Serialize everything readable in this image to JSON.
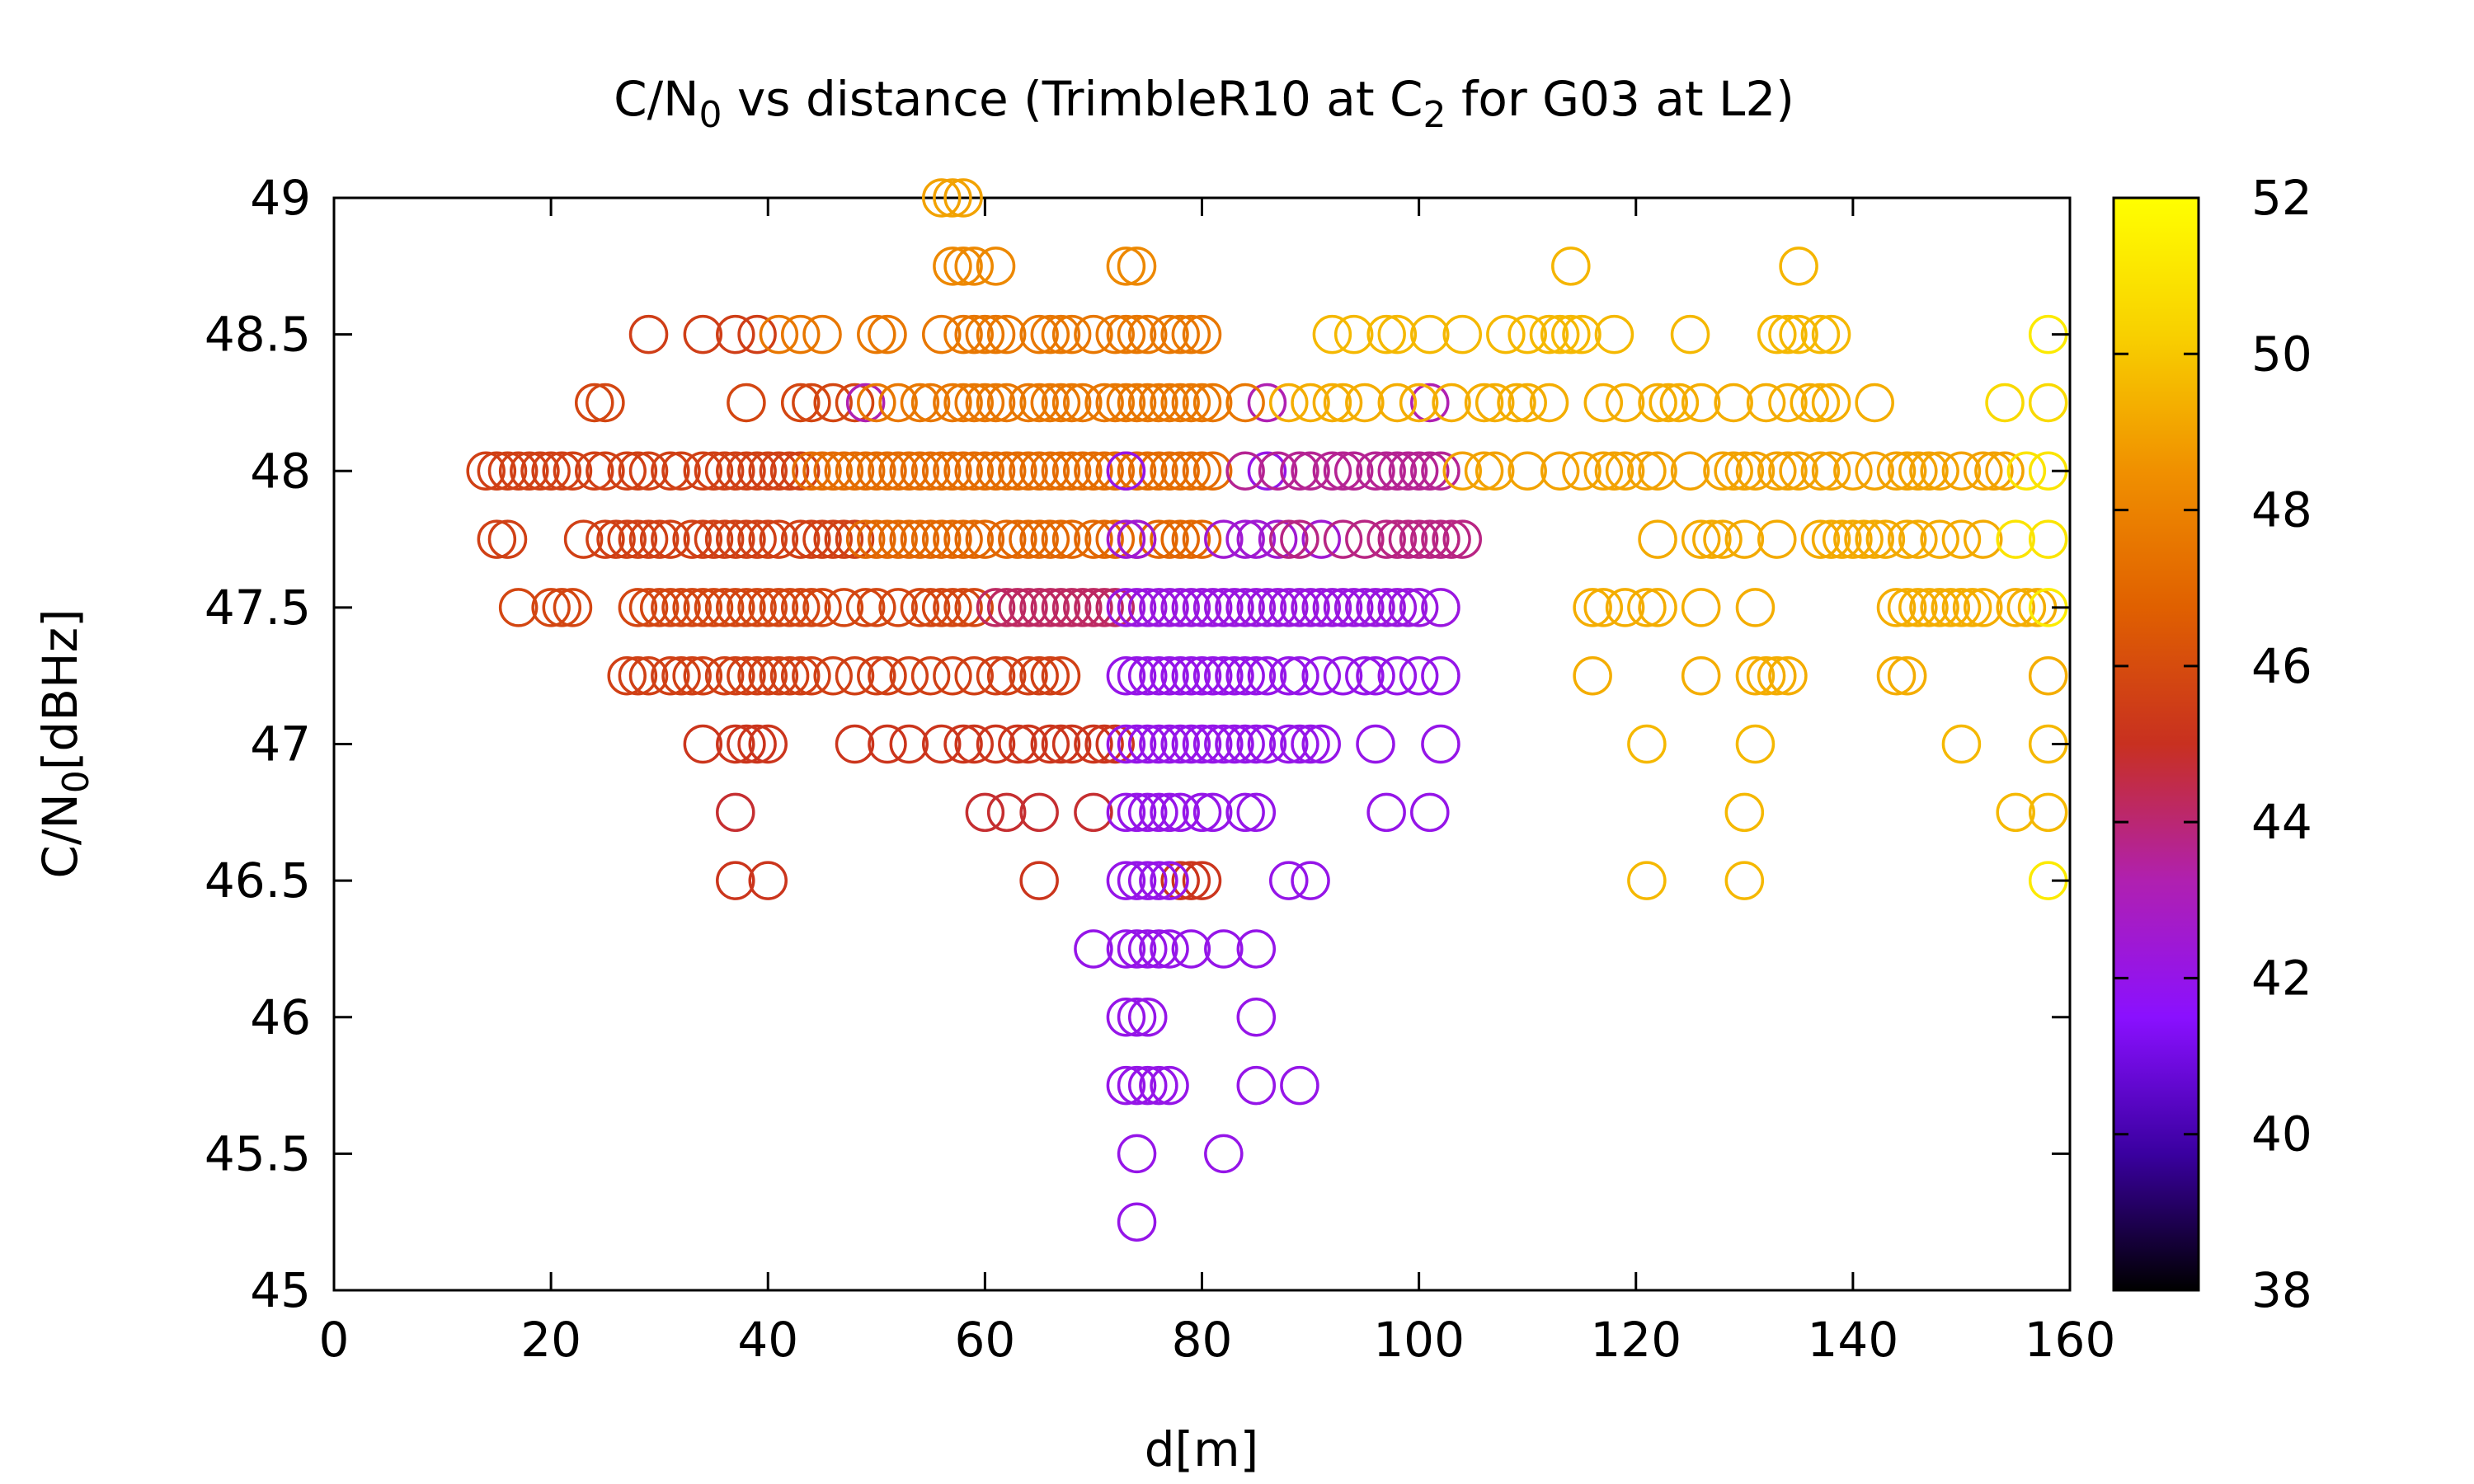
{
  "chart_data": {
    "type": "scatter",
    "title": {
      "prefix": "C/N",
      "prefix_sub": "0",
      "middle": " vs distance (TrimbleR10 at C",
      "middle_sub": "2",
      "suffix": " for G03 at L2)"
    },
    "xlabel": "d[m]",
    "ylabel": {
      "main": "C/N",
      "sub": "0",
      "rest": "[dBHz]"
    },
    "xlim": [
      0,
      160
    ],
    "ylim": [
      45,
      49
    ],
    "xticks": [
      "0",
      "20",
      "40",
      "60",
      "80",
      "100",
      "120",
      "140",
      "160"
    ],
    "yticks": [
      "45",
      "45.5",
      "46",
      "46.5",
      "47",
      "47.5",
      "48",
      "48.5",
      "49"
    ],
    "colorbar": {
      "range": [
        38,
        52
      ],
      "ticks": [
        "38",
        "40",
        "42",
        "44",
        "46",
        "48",
        "50",
        "52"
      ],
      "palette": [
        "#000000",
        "#3a00a0",
        "#8a10ff",
        "#b020b0",
        "#c83020",
        "#e06000",
        "#f09000",
        "#f8d000",
        "#ffff00"
      ]
    },
    "marker": "open-circle",
    "grid": false,
    "legend": "none",
    "series": [
      {
        "y": 49.0,
        "c": 49.0,
        "x": [
          56,
          57,
          58
        ]
      },
      {
        "y": 48.75,
        "c": 48.2,
        "x": [
          57,
          58,
          59,
          61,
          73,
          74
        ]
      },
      {
        "y": 48.75,
        "c": 49.5,
        "x": [
          114,
          135
        ]
      },
      {
        "y": 48.5,
        "c": 45.5,
        "x": [
          29,
          34,
          37,
          39
        ]
      },
      {
        "y": 48.5,
        "c": 47.6,
        "x": [
          41,
          43,
          45,
          50,
          51,
          56,
          58,
          59,
          60,
          61,
          62,
          65,
          66,
          67,
          68,
          70,
          72,
          73,
          74,
          75,
          77,
          78,
          79,
          80
        ]
      },
      {
        "y": 48.5,
        "c": 49.6,
        "x": [
          92,
          94,
          97,
          98,
          101,
          104,
          108,
          110,
          112,
          113,
          114,
          115,
          118,
          125,
          133,
          134,
          135,
          137,
          138
        ]
      },
      {
        "y": 48.5,
        "c": 51.2,
        "x": [
          158
        ]
      },
      {
        "y": 48.25,
        "c": 45.8,
        "x": [
          24,
          25,
          38,
          43,
          44,
          46,
          48
        ]
      },
      {
        "y": 48.25,
        "c": 43.2,
        "x": [
          49,
          86,
          101
        ]
      },
      {
        "y": 48.25,
        "c": 47.6,
        "x": [
          50,
          52,
          54,
          55,
          57,
          58,
          59,
          60,
          61,
          62,
          64,
          65,
          66,
          67,
          68,
          69,
          71,
          72,
          73,
          74,
          75,
          76,
          77,
          78,
          79,
          80,
          81,
          84
        ]
      },
      {
        "y": 48.25,
        "c": 49.3,
        "x": [
          88,
          90,
          92,
          93,
          95,
          98,
          100,
          103,
          106,
          107,
          109,
          110,
          112,
          117,
          119,
          122,
          123,
          124,
          126,
          129,
          132,
          134,
          136,
          137,
          138,
          142
        ]
      },
      {
        "y": 48.25,
        "c": 50.6,
        "x": [
          154,
          158
        ]
      },
      {
        "y": 48.0,
        "c": 45.6,
        "x": [
          14,
          15,
          16,
          17,
          18,
          19,
          20,
          21,
          22,
          24,
          25,
          27,
          28,
          29,
          31,
          32,
          34,
          35,
          36,
          37,
          38,
          39,
          40,
          41,
          42,
          43
        ]
      },
      {
        "y": 48.0,
        "c": 47.2,
        "x": [
          44,
          45,
          46,
          47,
          48,
          49,
          50,
          51,
          52,
          53,
          54,
          55,
          56,
          57,
          58,
          59,
          60,
          61,
          62,
          63,
          64,
          65,
          66,
          67,
          68,
          69,
          70,
          71,
          72,
          73,
          74,
          75,
          76,
          77,
          78,
          79,
          80,
          81
        ]
      },
      {
        "y": 48.0,
        "c": 42.0,
        "x": [
          73,
          86
        ]
      },
      {
        "y": 48.0,
        "c": 43.6,
        "x": [
          84,
          87,
          89,
          90,
          92,
          93,
          94,
          96,
          97,
          98,
          99,
          100,
          101,
          102
        ]
      },
      {
        "y": 48.0,
        "c": 49.0,
        "x": [
          104,
          106,
          107,
          110,
          113,
          115,
          117,
          118,
          119,
          121,
          122,
          125,
          128,
          129,
          130,
          131,
          133,
          134,
          135,
          137,
          138,
          140,
          142,
          144,
          145,
          146,
          147,
          148,
          150,
          152,
          153,
          154
        ]
      },
      {
        "y": 48.0,
        "c": 51.0,
        "x": [
          156,
          158
        ]
      },
      {
        "y": 47.75,
        "c": 45.6,
        "x": [
          15,
          16,
          23,
          25,
          26,
          27,
          28,
          29,
          30,
          31,
          33,
          34,
          35,
          36,
          37,
          38,
          39,
          40,
          41,
          43,
          44,
          45,
          46,
          47,
          48
        ]
      },
      {
        "y": 47.75,
        "c": 47.0,
        "x": [
          49,
          50,
          51,
          52,
          53,
          54,
          55,
          56,
          57,
          58,
          59,
          60,
          62,
          63,
          64,
          65,
          66,
          67,
          68,
          70,
          71,
          72,
          74,
          76,
          77,
          78,
          79,
          80
        ]
      },
      {
        "y": 47.75,
        "c": 42.5,
        "x": [
          73,
          74,
          82,
          84,
          85,
          87,
          91
        ]
      },
      {
        "y": 47.75,
        "c": 43.8,
        "x": [
          88,
          89,
          93,
          95,
          97,
          98,
          99,
          100,
          101,
          102,
          103,
          104
        ]
      },
      {
        "y": 47.75,
        "c": 49.2,
        "x": [
          122,
          126,
          127,
          128,
          130,
          133,
          137,
          138,
          139,
          140,
          141,
          142,
          143,
          145,
          146,
          148,
          150,
          152
        ]
      },
      {
        "y": 47.75,
        "c": 51.0,
        "x": [
          155,
          158
        ]
      },
      {
        "y": 47.5,
        "c": 45.8,
        "x": [
          17,
          20,
          21,
          22,
          28,
          29,
          30,
          31,
          32,
          33,
          34,
          35,
          36,
          37,
          38,
          39,
          40,
          41,
          42,
          43,
          44,
          45,
          47,
          49,
          50,
          52,
          54,
          55,
          56,
          57,
          58,
          59
        ]
      },
      {
        "y": 47.5,
        "c": 44.2,
        "x": [
          61,
          62,
          63,
          64,
          65,
          66,
          67,
          68,
          69,
          70,
          71,
          72
        ]
      },
      {
        "y": 47.5,
        "c": 42.2,
        "x": [
          73,
          74,
          75,
          76,
          77,
          78,
          79,
          80,
          81,
          82,
          83,
          84,
          85,
          86,
          87,
          88,
          89,
          90,
          91,
          92,
          93,
          94,
          95,
          96,
          97,
          98,
          99,
          100,
          102
        ]
      },
      {
        "y": 47.5,
        "c": 49.3,
        "x": [
          116,
          117,
          119,
          121,
          122,
          126,
          131,
          144,
          145,
          146,
          147,
          148,
          149,
          150,
          151,
          152,
          155,
          156,
          157
        ]
      },
      {
        "y": 47.5,
        "c": 51.3,
        "x": [
          158
        ]
      },
      {
        "y": 47.25,
        "c": 45.6,
        "x": [
          27,
          28,
          29,
          31,
          32,
          33,
          34,
          36,
          37,
          38,
          39,
          40,
          41,
          42,
          43,
          44,
          46,
          48,
          50,
          51,
          53,
          55,
          57,
          59,
          61,
          62,
          64,
          65,
          66,
          67
        ]
      },
      {
        "y": 47.25,
        "c": 42.0,
        "x": [
          73,
          74,
          75,
          76,
          77,
          78,
          79,
          80,
          81,
          82,
          83,
          84,
          85,
          86,
          88,
          89,
          91,
          93,
          95,
          96,
          98,
          100,
          102
        ]
      },
      {
        "y": 47.25,
        "c": 49.3,
        "x": [
          116,
          126,
          131,
          132,
          133,
          134,
          144,
          145,
          158
        ]
      },
      {
        "y": 47.0,
        "c": 45.2,
        "x": [
          34,
          37,
          38,
          39,
          40,
          48,
          51,
          53,
          56,
          58,
          59,
          61,
          63,
          64,
          66,
          67,
          68,
          70,
          71,
          72
        ]
      },
      {
        "y": 47.0,
        "c": 42.0,
        "x": [
          73,
          74,
          75,
          76,
          77,
          78,
          79,
          80,
          81,
          82,
          83,
          84,
          85,
          86,
          88,
          89,
          90,
          91,
          96,
          102
        ]
      },
      {
        "y": 47.0,
        "c": 49.6,
        "x": [
          121,
          131,
          150,
          158
        ]
      },
      {
        "y": 46.75,
        "c": 44.8,
        "x": [
          37,
          60,
          62,
          65,
          70
        ]
      },
      {
        "y": 46.75,
        "c": 42.0,
        "x": [
          73,
          74,
          75,
          76,
          77,
          78,
          80,
          81,
          84,
          85,
          97,
          101
        ]
      },
      {
        "y": 46.75,
        "c": 49.6,
        "x": [
          130,
          155,
          158
        ]
      },
      {
        "y": 46.5,
        "c": 45.2,
        "x": [
          37,
          40,
          65,
          78,
          79,
          80
        ]
      },
      {
        "y": 46.5,
        "c": 42.0,
        "x": [
          73,
          74,
          75,
          76,
          77,
          88,
          90
        ]
      },
      {
        "y": 46.5,
        "c": 49.6,
        "x": [
          121,
          130
        ]
      },
      {
        "y": 46.5,
        "c": 51.2,
        "x": [
          158
        ]
      },
      {
        "y": 46.25,
        "c": 42.0,
        "x": [
          70,
          73,
          74,
          75,
          76,
          77,
          79,
          82,
          85
        ]
      },
      {
        "y": 46.0,
        "c": 42.0,
        "x": [
          73,
          74,
          75,
          85
        ]
      },
      {
        "y": 45.75,
        "c": 42.0,
        "x": [
          73,
          74,
          75,
          76,
          77,
          85,
          89
        ]
      },
      {
        "y": 45.5,
        "c": 42.0,
        "x": [
          74,
          82
        ]
      },
      {
        "y": 45.25,
        "c": 42.0,
        "x": [
          74
        ]
      }
    ]
  }
}
